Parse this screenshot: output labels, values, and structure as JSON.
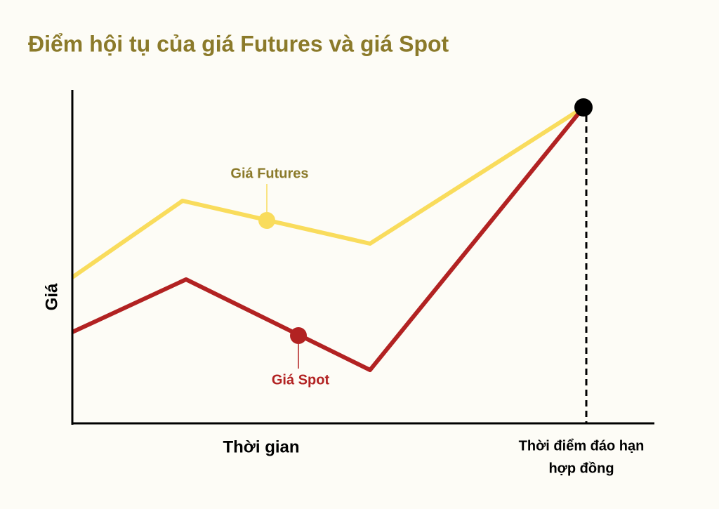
{
  "title": "Điểm hội tụ của giá Futures và giá Spot",
  "y_axis_label": "Giá",
  "x_axis_label": "Thời gian",
  "series_labels": [
    "Giá Futures",
    "Giá Spot"
  ],
  "expiry_annotation": [
    "Thời điểm đáo hạn",
    "hợp đồng"
  ]
}
